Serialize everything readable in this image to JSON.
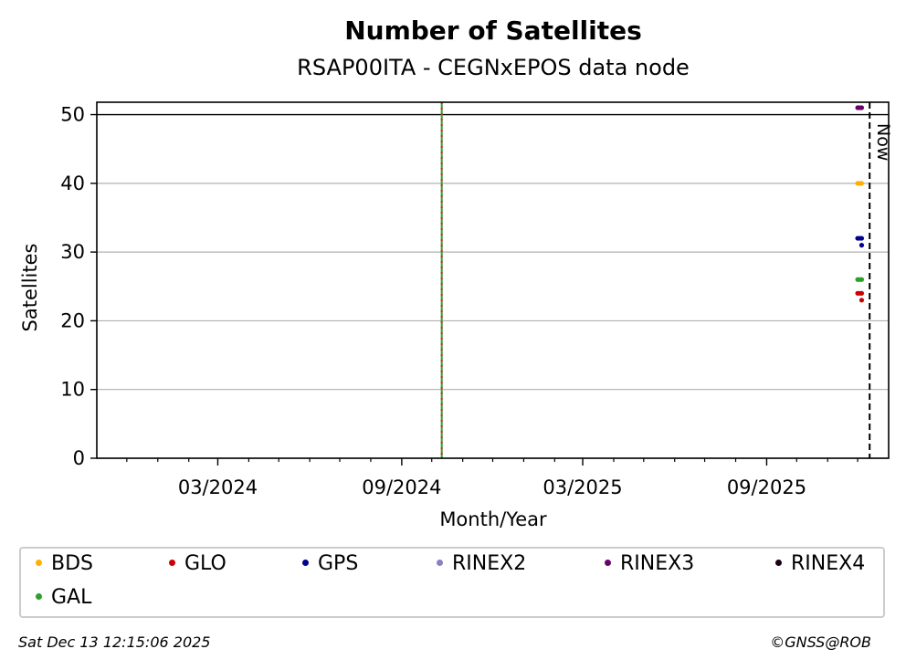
{
  "chart_data": {
    "type": "scatter",
    "title": "Number of Satellites",
    "subtitle": "RSAP00ITA - CEGNxEPOS data node",
    "xlabel": "Month/Year",
    "ylabel": "Satellites",
    "xlim": [
      "2023-11-01",
      "2026-01-01"
    ],
    "ylim": [
      0,
      51.8
    ],
    "yticks": [
      0,
      10,
      20,
      30,
      40,
      50
    ],
    "xticks": [
      {
        "date": "2024-03-01",
        "label": "03/2024"
      },
      {
        "date": "2024-09-01",
        "label": "09/2024"
      },
      {
        "date": "2025-03-01",
        "label": "03/2025"
      },
      {
        "date": "2025-09-01",
        "label": "09/2025"
      }
    ],
    "grid_y": true,
    "hline": 50,
    "event_line": {
      "date": "2024-10-11",
      "colors": [
        "#d62728",
        "#2ca02c"
      ]
    },
    "now_line": {
      "date": "2025-12-13",
      "label": "Now"
    },
    "series": [
      {
        "name": "BDS",
        "color": "#ffb000",
        "points": [
          {
            "x": "2025-12-01",
            "y": 40
          },
          {
            "x": "2025-12-03",
            "y": 40
          },
          {
            "x": "2025-12-05",
            "y": 40
          }
        ]
      },
      {
        "name": "GLO",
        "color": "#cc0000",
        "points": [
          {
            "x": "2025-12-01",
            "y": 24
          },
          {
            "x": "2025-12-03",
            "y": 24
          },
          {
            "x": "2025-12-05",
            "y": 24
          },
          {
            "x": "2025-12-05",
            "y": 23
          }
        ]
      },
      {
        "name": "GPS",
        "color": "#00008b",
        "points": [
          {
            "x": "2025-12-01",
            "y": 32
          },
          {
            "x": "2025-12-03",
            "y": 32
          },
          {
            "x": "2025-12-05",
            "y": 32
          },
          {
            "x": "2025-12-05",
            "y": 31
          }
        ]
      },
      {
        "name": "RINEX2",
        "color": "#8c7fc0",
        "points": []
      },
      {
        "name": "RINEX3",
        "color": "#6a006a",
        "points": [
          {
            "x": "2025-12-01",
            "y": 51
          },
          {
            "x": "2025-12-03",
            "y": 51
          },
          {
            "x": "2025-12-05",
            "y": 51
          }
        ]
      },
      {
        "name": "RINEX4",
        "color": "#1a0018",
        "points": []
      },
      {
        "name": "GAL",
        "color": "#2ca02c",
        "points": [
          {
            "x": "2025-12-01",
            "y": 26
          },
          {
            "x": "2025-12-03",
            "y": 26
          },
          {
            "x": "2025-12-05",
            "y": 26
          }
        ]
      }
    ]
  },
  "footer": {
    "timestamp": "Sat Dec 13 12:15:06 2025",
    "credit": "©GNSS@ROB"
  }
}
